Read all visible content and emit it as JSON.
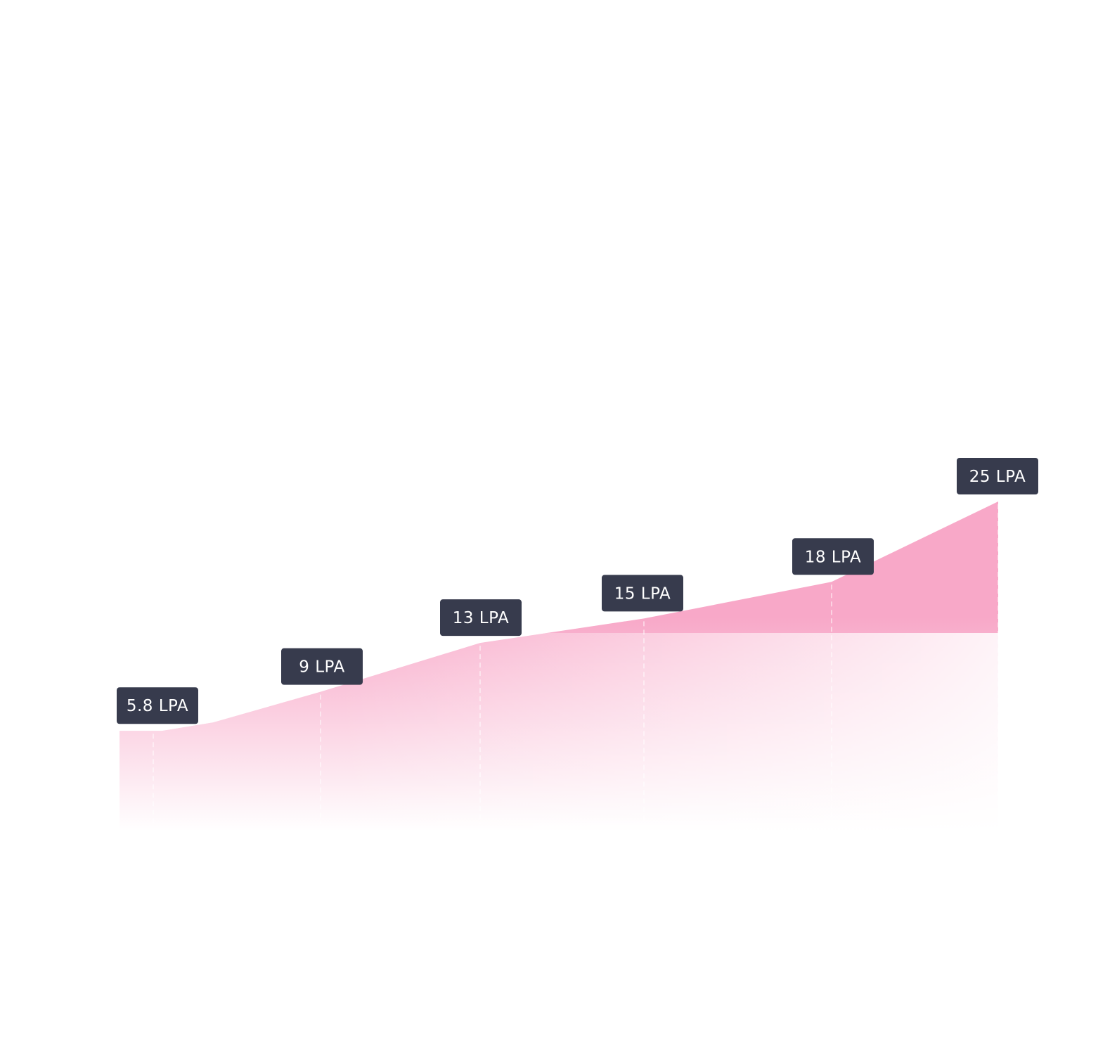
{
  "chart_data": {
    "type": "area",
    "title": "",
    "xlabel": "",
    "ylabel": "",
    "ylim": [
      0,
      25
    ],
    "grid": false,
    "points": [
      {
        "value": 5.8,
        "label": "5.8 LPA"
      },
      {
        "value": 9,
        "label": "9 LPA"
      },
      {
        "value": 13,
        "label": "13 LPA"
      },
      {
        "value": 15,
        "label": "15 LPA"
      },
      {
        "value": 18,
        "label": "18 LPA"
      },
      {
        "value": 25,
        "label": "25 LPA"
      }
    ],
    "colors": {
      "area": "#f8a8c8",
      "label_background": "#373b4d",
      "label_text": "#ffffff",
      "guide_line": "#ffffff"
    }
  }
}
